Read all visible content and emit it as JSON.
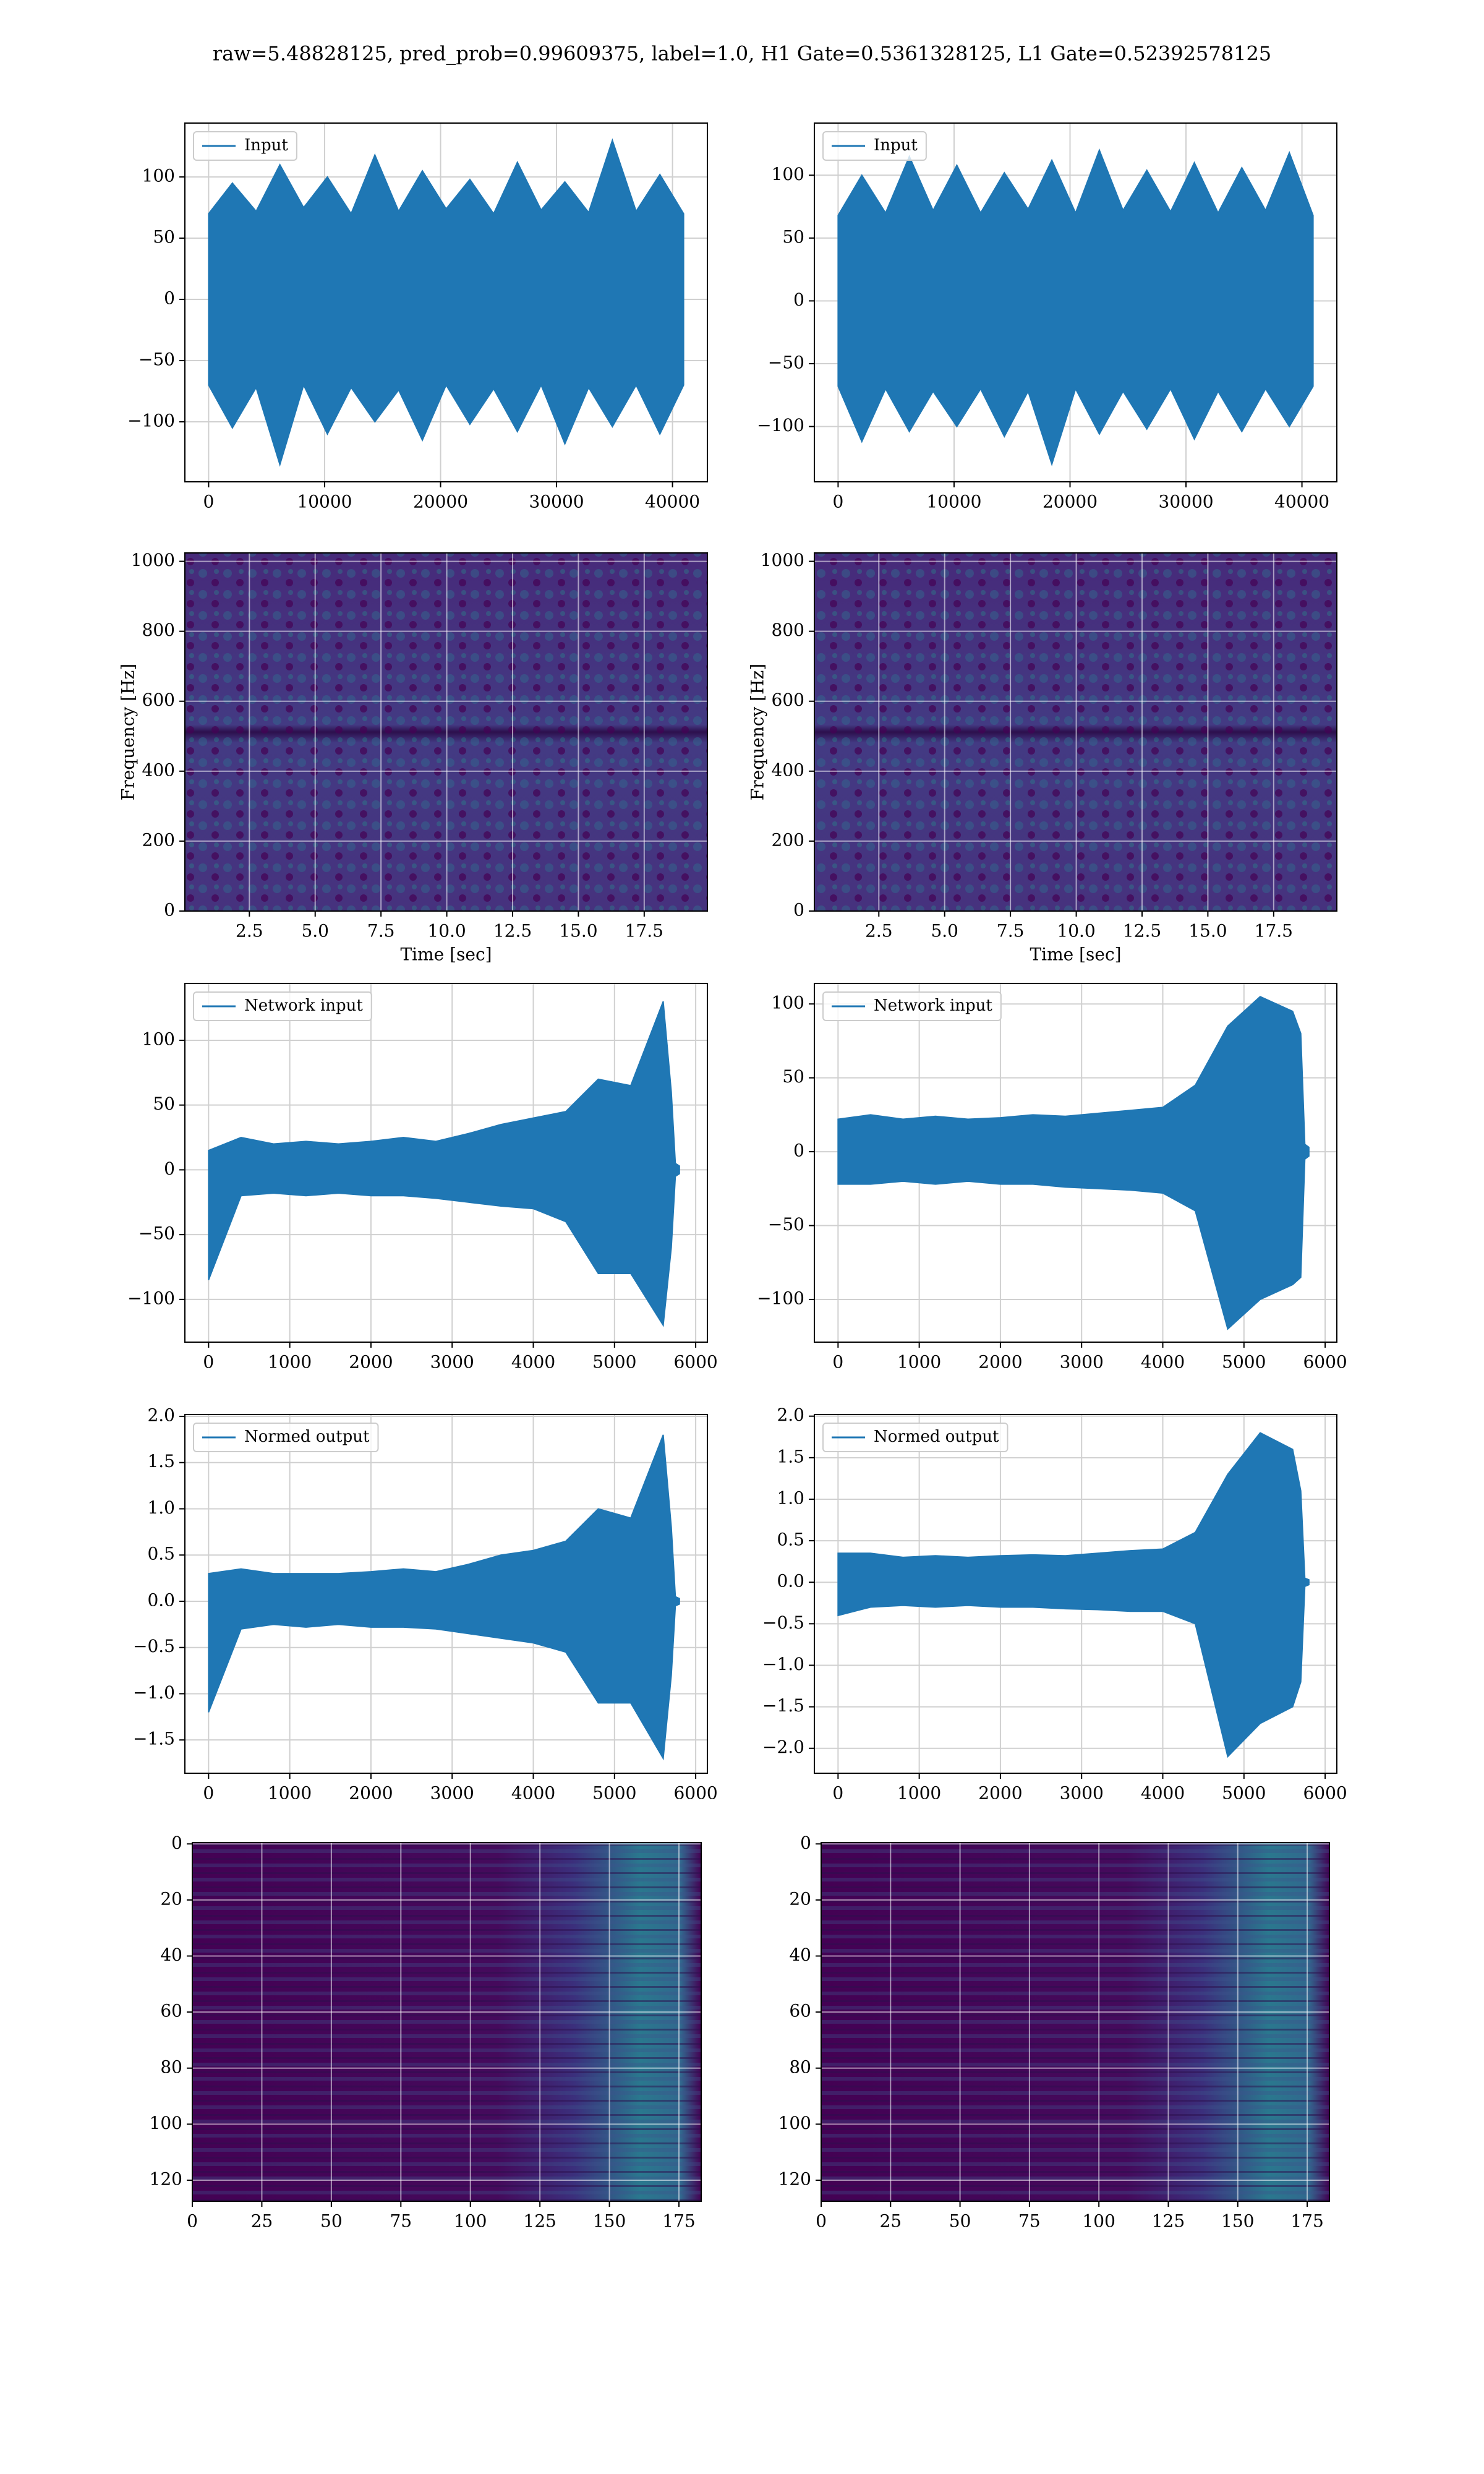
{
  "title": "raw=5.48828125, pred_prob=0.99609375, label=1.0, H1 Gate=0.5361328125, L1 Gate=0.52392578125",
  "chart_data": [
    {
      "type": "line",
      "xlim": [
        -2048,
        43008
      ],
      "ylim": [
        -149,
        144
      ],
      "grid": true,
      "legend": "upper left",
      "xticks": [
        0,
        10000,
        20000,
        30000,
        40000
      ],
      "yticks": [
        {
          "value": -100,
          "label": "−100"
        },
        {
          "value": -50,
          "label": "−50"
        },
        0,
        50,
        100
      ],
      "x": [
        0,
        2048,
        4096,
        6144,
        8192,
        10240,
        12288,
        14336,
        16384,
        18432,
        20480,
        22528,
        24576,
        26624,
        28672,
        30720,
        32768,
        34816,
        36864,
        38912,
        40960
      ],
      "series": [
        {
          "name": "Input",
          "color": "#1f77b4",
          "upper": [
            70,
            95,
            72,
            110,
            75,
            100,
            70,
            118,
            72,
            105,
            74,
            98,
            70,
            112,
            73,
            96,
            71,
            130,
            72,
            102,
            70
          ],
          "lower": [
            -70,
            -105,
            -72,
            -135,
            -70,
            -110,
            -72,
            -100,
            -74,
            -115,
            -70,
            -102,
            -73,
            -108,
            -70,
            -118,
            -72,
            -104,
            -70,
            -110,
            -70
          ]
        }
      ]
    },
    {
      "type": "line",
      "xlim": [
        -2048,
        43008
      ],
      "ylim": [
        -144,
        141.5
      ],
      "grid": true,
      "legend": "upper left",
      "xticks": [
        0,
        10000,
        20000,
        30000,
        40000
      ],
      "yticks": [
        {
          "value": -100,
          "label": "−100"
        },
        {
          "value": -50,
          "label": "−50"
        },
        0,
        50,
        100
      ],
      "x": [
        0,
        2048,
        4096,
        6144,
        8192,
        10240,
        12288,
        14336,
        16384,
        18432,
        20480,
        22528,
        24576,
        26624,
        28672,
        30720,
        32768,
        34816,
        36864,
        38912,
        40960
      ],
      "series": [
        {
          "name": "Input",
          "color": "#1f77b4",
          "upper": [
            68,
            100,
            70,
            115,
            72,
            108,
            70,
            102,
            73,
            112,
            70,
            120,
            72,
            104,
            71,
            110,
            70,
            106,
            72,
            118,
            68
          ],
          "lower": [
            -68,
            -112,
            -70,
            -104,
            -72,
            -100,
            -70,
            -108,
            -72,
            -130,
            -70,
            -106,
            -72,
            -102,
            -70,
            -110,
            -72,
            -104,
            -70,
            -100,
            -68
          ]
        }
      ]
    },
    {
      "type": "heatmap",
      "style": "spectrogram",
      "xlim": [
        0.05,
        19.9
      ],
      "ylim": [
        0,
        1024
      ],
      "grid": true,
      "xlabel": "Time [sec]",
      "ylabel": "Frequency [Hz]",
      "xticks": [
        2.5,
        {
          "value": 5,
          "label": "5.0"
        },
        7.5,
        {
          "value": 10,
          "label": "10.0"
        },
        12.5,
        {
          "value": 15,
          "label": "15.0"
        },
        17.5
      ],
      "yticks": [
        0,
        200,
        400,
        600,
        800,
        1000
      ]
    },
    {
      "type": "heatmap",
      "style": "spectrogram",
      "xlim": [
        0.05,
        19.9
      ],
      "ylim": [
        0,
        1024
      ],
      "grid": true,
      "xlabel": "Time [sec]",
      "ylabel": "Frequency [Hz]",
      "xticks": [
        2.5,
        {
          "value": 5,
          "label": "5.0"
        },
        7.5,
        {
          "value": 10,
          "label": "10.0"
        },
        12.5,
        {
          "value": 15,
          "label": "15.0"
        },
        17.5
      ],
      "yticks": [
        0,
        200,
        400,
        600,
        800,
        1000
      ]
    },
    {
      "type": "line",
      "xlim": [
        -292,
        6144
      ],
      "ylim": [
        -133,
        143.9
      ],
      "grid": true,
      "legend": "upper left",
      "xticks": [
        0,
        1000,
        2000,
        3000,
        4000,
        5000,
        6000
      ],
      "yticks": [
        {
          "value": -100,
          "label": "−100"
        },
        {
          "value": -50,
          "label": "−50"
        },
        0,
        50,
        100
      ],
      "x": [
        0,
        400,
        800,
        1200,
        1600,
        2000,
        2400,
        2800,
        3200,
        3600,
        4000,
        4400,
        4800,
        5200,
        5600,
        5700,
        5750,
        5800
      ],
      "series": [
        {
          "name": "Network input",
          "color": "#1f77b4",
          "upper": [
            15,
            25,
            20,
            22,
            20,
            22,
            25,
            22,
            28,
            35,
            40,
            45,
            70,
            65,
            130,
            60,
            5,
            3
          ],
          "lower": [
            -85,
            -20,
            -18,
            -20,
            -18,
            -20,
            -20,
            -22,
            -25,
            -28,
            -30,
            -40,
            -80,
            -80,
            -120,
            -60,
            -5,
            -3
          ]
        }
      ]
    },
    {
      "type": "line",
      "xlim": [
        -292,
        6144
      ],
      "ylim": [
        -128.9,
        113.9
      ],
      "grid": true,
      "legend": "upper left",
      "xticks": [
        0,
        1000,
        2000,
        3000,
        4000,
        5000,
        6000
      ],
      "yticks": [
        {
          "value": -100,
          "label": "−100"
        },
        {
          "value": -50,
          "label": "−50"
        },
        0,
        50,
        100
      ],
      "x": [
        0,
        400,
        800,
        1200,
        1600,
        2000,
        2400,
        2800,
        3200,
        3600,
        4000,
        4400,
        4800,
        5200,
        5600,
        5700,
        5750,
        5800
      ],
      "series": [
        {
          "name": "Network input",
          "color": "#1f77b4",
          "upper": [
            22,
            25,
            22,
            24,
            22,
            23,
            25,
            24,
            26,
            28,
            30,
            45,
            85,
            105,
            95,
            80,
            5,
            3
          ],
          "lower": [
            -22,
            -22,
            -20,
            -22,
            -20,
            -22,
            -22,
            -24,
            -25,
            -26,
            -28,
            -40,
            -120,
            -100,
            -90,
            -85,
            -5,
            -3
          ]
        }
      ]
    },
    {
      "type": "line",
      "xlim": [
        -292,
        6144
      ],
      "ylim": [
        -1.86,
        2.02
      ],
      "grid": true,
      "legend": "upper left",
      "xticks": [
        0,
        1000,
        2000,
        3000,
        4000,
        5000,
        6000
      ],
      "yticks": [
        {
          "value": -1.5,
          "label": "−1.5"
        },
        {
          "value": -1,
          "label": "−1.0"
        },
        {
          "value": -0.5,
          "label": "−0.5"
        },
        {
          "value": 0,
          "label": "0.0"
        },
        0.5,
        {
          "value": 1,
          "label": "1.0"
        },
        1.5,
        {
          "value": 2,
          "label": "2.0"
        }
      ],
      "x": [
        0,
        400,
        800,
        1200,
        1600,
        2000,
        2400,
        2800,
        3200,
        3600,
        4000,
        4400,
        4800,
        5200,
        5600,
        5700,
        5750,
        5800
      ],
      "series": [
        {
          "name": "Normed output",
          "color": "#1f77b4",
          "upper": [
            0.3,
            0.35,
            0.3,
            0.3,
            0.3,
            0.32,
            0.35,
            0.32,
            0.4,
            0.5,
            0.55,
            0.65,
            1.0,
            0.9,
            1.8,
            0.8,
            0.05,
            0.03
          ],
          "lower": [
            -1.2,
            -0.3,
            -0.25,
            -0.28,
            -0.25,
            -0.28,
            -0.28,
            -0.3,
            -0.35,
            -0.4,
            -0.45,
            -0.55,
            -1.1,
            -1.1,
            -1.7,
            -0.8,
            -0.05,
            -0.03
          ]
        }
      ]
    },
    {
      "type": "line",
      "xlim": [
        -292,
        6144
      ],
      "ylim": [
        -2.3,
        2.02
      ],
      "grid": true,
      "legend": "upper left",
      "xticks": [
        0,
        1000,
        2000,
        3000,
        4000,
        5000,
        6000
      ],
      "yticks": [
        {
          "value": -2,
          "label": "−2.0"
        },
        {
          "value": -1.5,
          "label": "−1.5"
        },
        {
          "value": -1,
          "label": "−1.0"
        },
        {
          "value": -0.5,
          "label": "−0.5"
        },
        {
          "value": 0,
          "label": "0.0"
        },
        0.5,
        {
          "value": 1,
          "label": "1.0"
        },
        1.5,
        {
          "value": 2,
          "label": "2.0"
        }
      ],
      "x": [
        0,
        400,
        800,
        1200,
        1600,
        2000,
        2400,
        2800,
        3200,
        3600,
        4000,
        4400,
        4800,
        5200,
        5600,
        5700,
        5750,
        5800
      ],
      "series": [
        {
          "name": "Normed output",
          "color": "#1f77b4",
          "upper": [
            0.35,
            0.35,
            0.3,
            0.32,
            0.3,
            0.32,
            0.33,
            0.32,
            0.35,
            0.38,
            0.4,
            0.6,
            1.3,
            1.8,
            1.6,
            1.1,
            0.05,
            0.03
          ],
          "lower": [
            -0.4,
            -0.3,
            -0.28,
            -0.3,
            -0.28,
            -0.3,
            -0.3,
            -0.32,
            -0.33,
            -0.35,
            -0.35,
            -0.5,
            -2.1,
            -1.7,
            -1.5,
            -1.2,
            -0.05,
            -0.03
          ]
        }
      ]
    },
    {
      "type": "heatmap",
      "style": "activation",
      "xlim": [
        0,
        183
      ],
      "ylim": [
        127.5,
        -0.5
      ],
      "grid": true,
      "xticks": [
        0,
        25,
        50,
        75,
        100,
        125,
        150,
        175
      ],
      "yticks": [
        0,
        20,
        40,
        60,
        80,
        100,
        120
      ]
    },
    {
      "type": "heatmap",
      "style": "activation",
      "xlim": [
        0,
        183
      ],
      "ylim": [
        127.5,
        -0.5
      ],
      "grid": true,
      "xticks": [
        0,
        25,
        50,
        75,
        100,
        125,
        150,
        175
      ],
      "yticks": [
        0,
        20,
        40,
        60,
        80,
        100,
        120
      ]
    }
  ]
}
